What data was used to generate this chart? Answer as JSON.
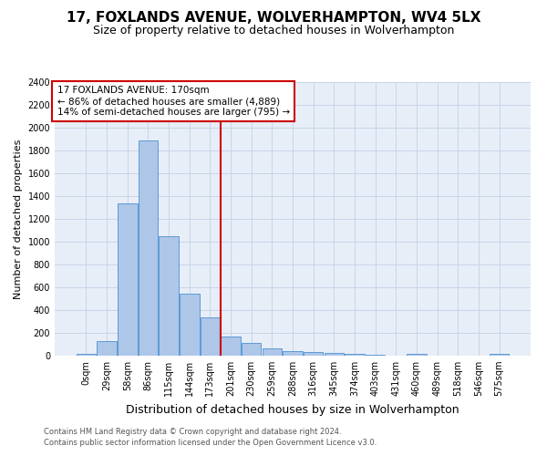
{
  "title": "17, FOXLANDS AVENUE, WOLVERHAMPTON, WV4 5LX",
  "subtitle": "Size of property relative to detached houses in Wolverhampton",
  "xlabel": "Distribution of detached houses by size in Wolverhampton",
  "ylabel": "Number of detached properties",
  "footer1": "Contains HM Land Registry data © Crown copyright and database right 2024.",
  "footer2": "Contains public sector information licensed under the Open Government Licence v3.0.",
  "bar_labels": [
    "0sqm",
    "29sqm",
    "58sqm",
    "86sqm",
    "115sqm",
    "144sqm",
    "173sqm",
    "201sqm",
    "230sqm",
    "259sqm",
    "288sqm",
    "316sqm",
    "345sqm",
    "374sqm",
    "403sqm",
    "431sqm",
    "460sqm",
    "489sqm",
    "518sqm",
    "546sqm",
    "575sqm"
  ],
  "bar_values": [
    15,
    125,
    1340,
    1890,
    1045,
    545,
    335,
    170,
    110,
    65,
    40,
    30,
    25,
    20,
    12,
    0,
    20,
    0,
    0,
    0,
    15
  ],
  "bar_color": "#aec6e8",
  "bar_edge_color": "#5b9bd5",
  "vline_x_index": 6,
  "vline_color": "#cc0000",
  "annotation_text": "17 FOXLANDS AVENUE: 170sqm\n← 86% of detached houses are smaller (4,889)\n14% of semi-detached houses are larger (795) →",
  "annotation_box_color": "#cc0000",
  "ylim": [
    0,
    2400
  ],
  "yticks": [
    0,
    200,
    400,
    600,
    800,
    1000,
    1200,
    1400,
    1600,
    1800,
    2000,
    2200,
    2400
  ],
  "grid_color": "#c8d4e8",
  "bg_color": "#e8eef8",
  "title_fontsize": 11,
  "subtitle_fontsize": 9,
  "ylabel_fontsize": 8,
  "xlabel_fontsize": 9,
  "tick_fontsize": 7,
  "annotation_fontsize": 7.5
}
